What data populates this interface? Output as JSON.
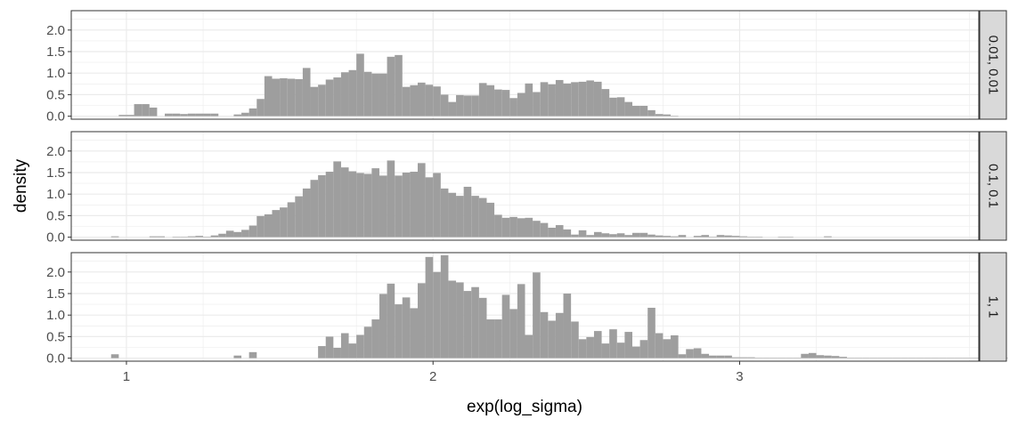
{
  "chart_data": {
    "type": "bar",
    "subtype": "faceted-histogram",
    "xlabel": "exp(log_sigma)",
    "ylabel": "density",
    "xlim": [
      0.82,
      3.78
    ],
    "ylim": [
      -0.07,
      2.45
    ],
    "x_ticks": [
      1,
      2,
      3
    ],
    "x_tick_labels": [
      "1",
      "2",
      "3"
    ],
    "y_ticks": [
      0,
      0.5,
      1,
      1.5,
      2
    ],
    "y_tick_labels": [
      "0.0",
      "0.5",
      "1.0",
      "1.5",
      "2.0"
    ],
    "bin_width": 0.025,
    "bin_start": 0.95,
    "grid": true,
    "theme": "bw",
    "colors": {
      "bar": "#9e9e9e",
      "panel_border": "#333333",
      "grid": "#ebebeb",
      "strip_fill": "#d9d9d9",
      "axis_text": "#4d4d4d"
    },
    "panels": [
      {
        "strip_label": "0.01, 0.01",
        "values": [
          0,
          0.03,
          0.03,
          0.28,
          0.28,
          0.2,
          0,
          0.06,
          0.06,
          0.05,
          0.06,
          0.06,
          0.06,
          0.06,
          0,
          0,
          0.04,
          0.08,
          0.18,
          0.4,
          0.93,
          0.87,
          0.88,
          0.87,
          0.86,
          1.12,
          0.68,
          0.73,
          0.85,
          0.9,
          1.02,
          1.07,
          1.45,
          1.03,
          0.99,
          0.99,
          1.38,
          1.42,
          0.68,
          0.72,
          0.78,
          0.73,
          0.69,
          0.5,
          0.33,
          0.49,
          0.48,
          0.48,
          0.77,
          0.72,
          0.62,
          0.61,
          0.42,
          0.54,
          0.76,
          0.56,
          0.79,
          0.74,
          0.84,
          0.76,
          0.79,
          0.8,
          0.83,
          0.8,
          0.63,
          0.43,
          0.44,
          0.33,
          0.24,
          0.24,
          0.14,
          0.05,
          0.04,
          0.01
        ]
      },
      {
        "strip_label": "0.1, 0.1",
        "values": [
          0.02,
          0,
          0,
          0,
          0,
          0.02,
          0.02,
          0,
          0.01,
          0.01,
          0.02,
          0.03,
          0.01,
          0.04,
          0.08,
          0.15,
          0.12,
          0.17,
          0.27,
          0.49,
          0.53,
          0.63,
          0.69,
          0.81,
          0.95,
          1.13,
          1.33,
          1.44,
          1.52,
          1.76,
          1.62,
          1.53,
          1.49,
          1.47,
          1.6,
          1.43,
          1.78,
          1.43,
          1.5,
          1.52,
          1.72,
          1.39,
          1.49,
          1.13,
          1.03,
          0.96,
          1.17,
          0.96,
          0.91,
          0.8,
          0.52,
          0.45,
          0.47,
          0.44,
          0.45,
          0.38,
          0.33,
          0.22,
          0.28,
          0.18,
          0.06,
          0.16,
          0.05,
          0.12,
          0.09,
          0.07,
          0.09,
          0.05,
          0.1,
          0.1,
          0.06,
          0.04,
          0.03,
          0.02,
          0.05,
          0,
          0.03,
          0.05,
          0.01,
          0.05,
          0.04,
          0.03,
          0.02,
          0.01,
          0.01,
          0,
          0,
          0.01,
          0.01,
          0,
          0,
          0,
          0,
          0.02
        ]
      },
      {
        "strip_label": "1, 1",
        "values": [
          0.09,
          0,
          0,
          0,
          0,
          0,
          0,
          0,
          0,
          0,
          0,
          0,
          0,
          0,
          0,
          0,
          0.06,
          0,
          0.14,
          0,
          0,
          0,
          0,
          0,
          0,
          0,
          0,
          0.28,
          0.5,
          0.24,
          0.58,
          0.34,
          0.54,
          0.73,
          0.9,
          1.49,
          1.73,
          1.25,
          1.41,
          1.16,
          1.74,
          2.35,
          2.0,
          2.39,
          1.8,
          1.76,
          1.56,
          1.65,
          1.4,
          0.9,
          0.9,
          1.47,
          1.14,
          1.72,
          0.54,
          1.99,
          1.07,
          0.87,
          1.05,
          1.5,
          0.85,
          0.44,
          0.49,
          0.63,
          0.34,
          0.67,
          0.36,
          0.61,
          0.27,
          0.42,
          1.17,
          0.58,
          0.44,
          0.53,
          0.09,
          0.21,
          0.23,
          0.1,
          0.06,
          0.06,
          0.06,
          0.02,
          0.02,
          0.02,
          0.01,
          0.01,
          0.01,
          0.01,
          0.01,
          0.01,
          0.1,
          0.12,
          0.07,
          0.06,
          0.05,
          0.03,
          0.01,
          0.01,
          0.01,
          0.01,
          0.01,
          0.01,
          0.01,
          0.01,
          0.01,
          0.01,
          0.01,
          0.01,
          0.01,
          0.01,
          0.01,
          0.01,
          0.01,
          0.01,
          0.01,
          0.01,
          0.01,
          0,
          0,
          0,
          0,
          0,
          0,
          0.06,
          0,
          0,
          0,
          0,
          0,
          0.05,
          0,
          0,
          0.01,
          0,
          0,
          0,
          0,
          0,
          0.04,
          0,
          0.08
        ]
      }
    ]
  }
}
